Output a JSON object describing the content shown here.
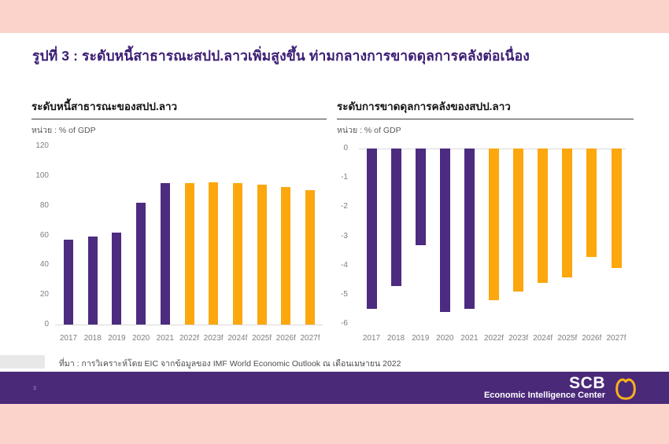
{
  "page": {
    "title": "รูปที่ 3 : ระดับหนี้สาธารณะสปป.ลาวเพิ่มสูงขึ้น ท่ามกลางการขาดดุลการคลังต่อเนื่อง",
    "source": "ที่มา : การวิเคราะห์โดย EIC จากข้อมูลของ IMF World Economic Outlook ณ เดือนเมษายน 2022",
    "page_number": "3"
  },
  "footer": {
    "brand": "SCB",
    "brand_sub": "Economic Intelligence Center",
    "logo_icon": "scb-leaf-icon"
  },
  "colors": {
    "actual": "#4c2b80",
    "forecast": "#fca70d",
    "title_purple": "#3b1d74",
    "footer_purple": "#4a2979",
    "pink_strip": "#fbd3cb",
    "logo_gold": "#f9b21a"
  },
  "chart_data": [
    {
      "type": "bar",
      "title": "ระดับหนี้สาธารณะของสปป.ลาว",
      "unit_label": "หน่วย : % of GDP",
      "categories": [
        "2017",
        "2018",
        "2019",
        "2020",
        "2021",
        "2022f",
        "2023f",
        "2024f",
        "2025f",
        "2026f",
        "2027f"
      ],
      "values": [
        57,
        59,
        62,
        82,
        95,
        95,
        95.5,
        95,
        94,
        92.5,
        90.5
      ],
      "actual_count": 5,
      "ylim": [
        0,
        120
      ],
      "yticks": [
        120,
        100,
        80,
        60,
        40,
        20,
        0
      ],
      "xlabel": "",
      "ylabel": "% of GDP",
      "grid": false,
      "legend": "none"
    },
    {
      "type": "bar",
      "title": "ระดับการขาดดุลการคลังของสปป.ลาว",
      "unit_label": "หน่วย : % of GDP",
      "categories": [
        "2017",
        "2018",
        "2019",
        "2020",
        "2021",
        "2022f",
        "2023f",
        "2024f",
        "2025f",
        "2026f",
        "2027f"
      ],
      "values": [
        -5.5,
        -4.7,
        -3.3,
        -5.6,
        -5.5,
        -5.2,
        -4.9,
        -4.6,
        -4.4,
        -3.7,
        -4.1
      ],
      "actual_count": 5,
      "ylim": [
        -6,
        0
      ],
      "yticks": [
        0,
        -1,
        -2,
        -3,
        -4,
        -5,
        -6
      ],
      "xlabel": "",
      "ylabel": "% of GDP",
      "grid": false,
      "legend": "none"
    }
  ]
}
